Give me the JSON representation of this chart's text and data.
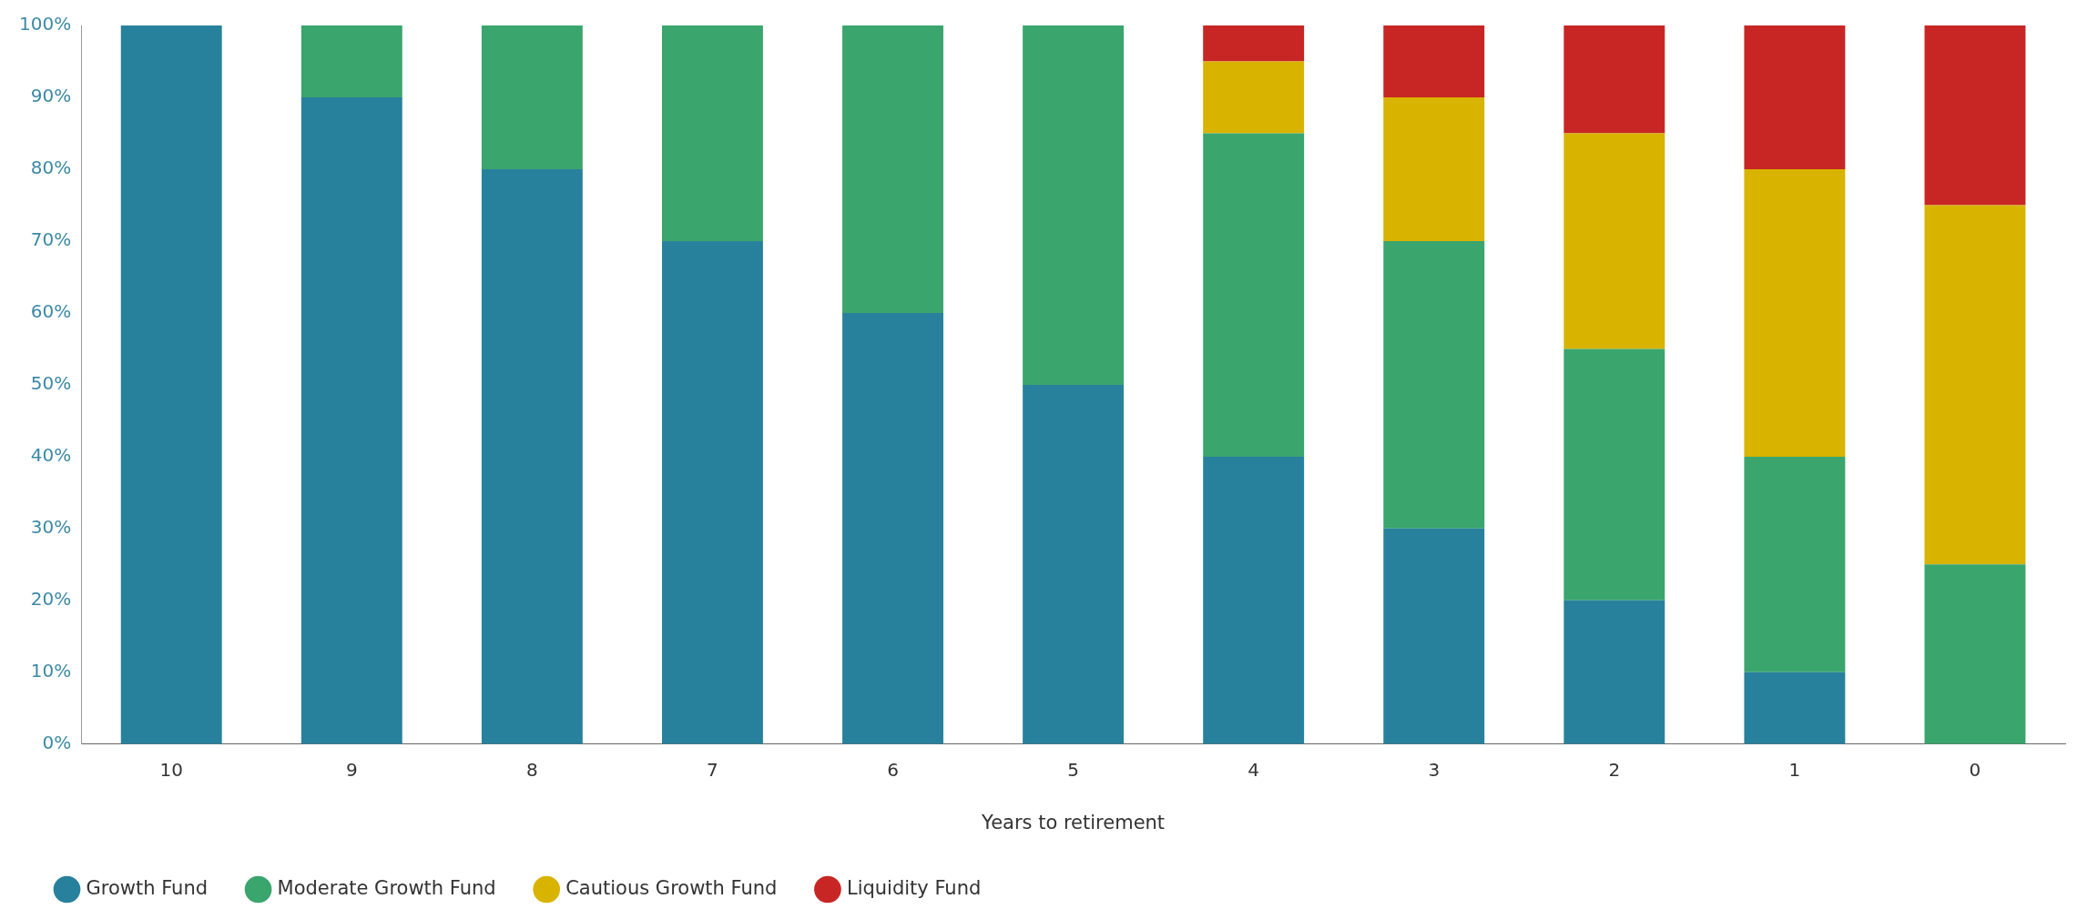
{
  "chart_data": {
    "type": "bar",
    "stacked": true,
    "xlabel": "Years to retirement",
    "categories": [
      "10",
      "9",
      "8",
      "7",
      "6",
      "5",
      "4",
      "3",
      "2",
      "1",
      "0"
    ],
    "series": [
      {
        "name": "Growth Fund",
        "color": "#28819c",
        "values": [
          100,
          90,
          80,
          70,
          60,
          50,
          40,
          30,
          20,
          10,
          0
        ]
      },
      {
        "name": "Moderate Growth Fund",
        "color": "#3aa56d",
        "values": [
          0,
          10,
          20,
          30,
          40,
          50,
          45,
          40,
          35,
          30,
          25
        ]
      },
      {
        "name": "Cautious Growth Fund",
        "color": "#d8b300",
        "values": [
          0,
          0,
          0,
          0,
          0,
          0,
          10,
          20,
          30,
          40,
          50
        ]
      },
      {
        "name": "Liquidity Fund",
        "color": "#c72624",
        "values": [
          0,
          0,
          0,
          0,
          0,
          0,
          5,
          10,
          15,
          20,
          25
        ]
      }
    ],
    "ylim": [
      0,
      100
    ],
    "yticks": [
      {
        "value": 0,
        "label": "0%"
      },
      {
        "value": 10,
        "label": "10%"
      },
      {
        "value": 20,
        "label": "20%"
      },
      {
        "value": 30,
        "label": "30%"
      },
      {
        "value": 40,
        "label": "40%"
      },
      {
        "value": 50,
        "label": "50%"
      },
      {
        "value": 60,
        "label": "60%"
      },
      {
        "value": 70,
        "label": "70%"
      },
      {
        "value": 80,
        "label": "80%"
      },
      {
        "value": 90,
        "label": "90%"
      },
      {
        "value": 100,
        "label": "100%"
      }
    ],
    "grid": false,
    "legend": "bottom left"
  }
}
